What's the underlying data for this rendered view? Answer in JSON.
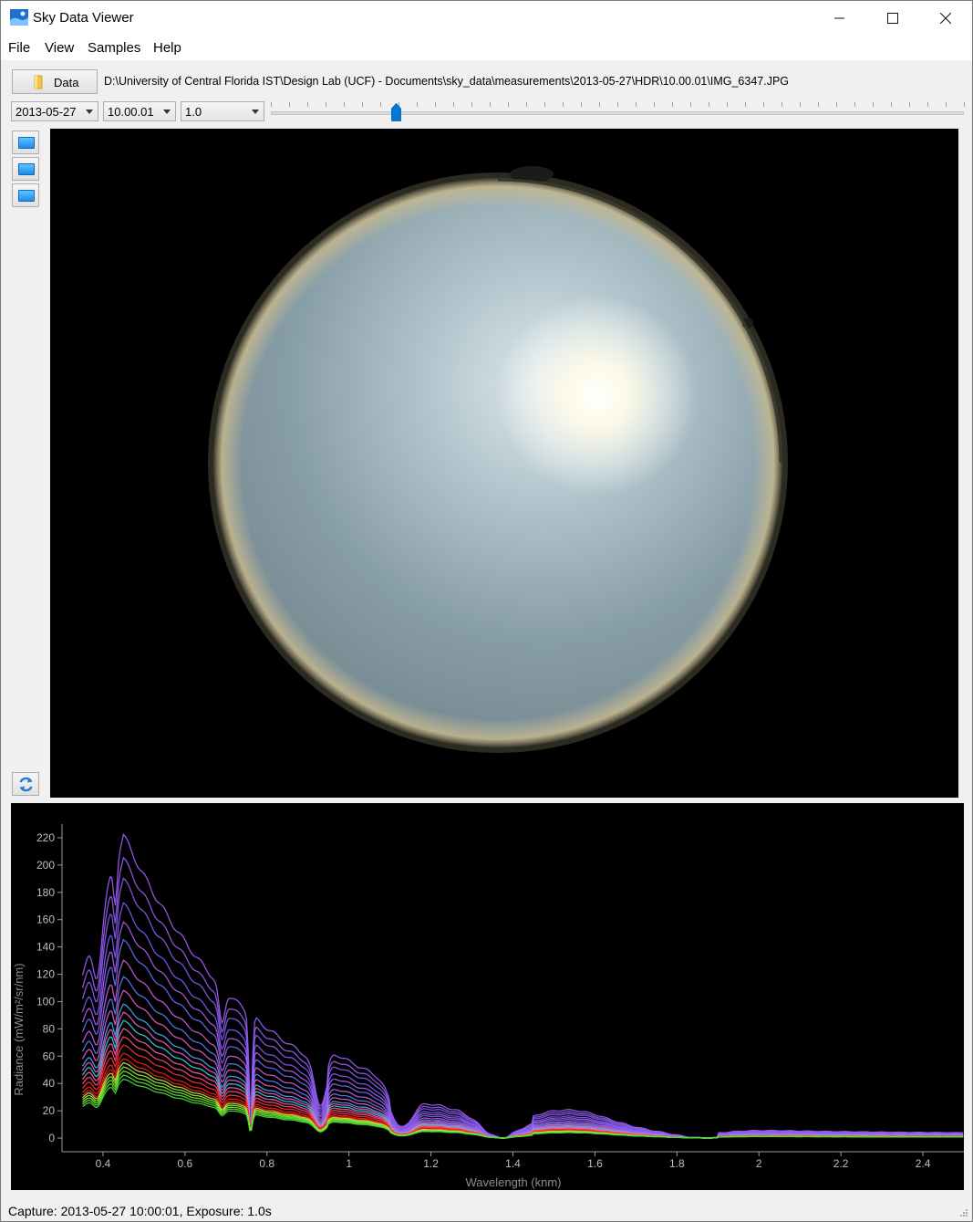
{
  "window": {
    "title": "Sky Data Viewer",
    "controls": {
      "minimize": "minimize-icon",
      "maximize": "maximize-icon",
      "close": "close-icon"
    }
  },
  "menu": {
    "items": [
      "File",
      "View",
      "Samples",
      "Help"
    ]
  },
  "toolbar": {
    "data_button_label": "Data",
    "path": "D:\\University of Central Florida IST\\Design Lab (UCF) - Documents\\sky_data\\measurements\\2013-05-27\\HDR\\10.00.01\\IMG_6347.JPG",
    "date_combo": "2013-05-27",
    "time_combo": "10.00.01",
    "exposure_combo": "1.0",
    "slider_position": 0.18
  },
  "sidebar": {
    "buttons": [
      "monitor-icon",
      "monitor-icon",
      "monitor-icon"
    ],
    "refresh": "refresh-icon"
  },
  "status": {
    "text": "Capture: 2013-05-27 10:00:01, Exposure: 1.0s"
  },
  "colors": {
    "accent": "#0078d7",
    "plot_bg": "#000000",
    "tick_text": "#bfbfbf"
  },
  "chart_data": {
    "type": "line",
    "title": "",
    "xlabel": "Wavelength (knm)",
    "ylabel": "Radiance (mW/m²/sr/nm)",
    "xlim": [
      0.3,
      2.5
    ],
    "ylim": [
      -10,
      230
    ],
    "x_ticks": [
      "0.4",
      "0.6",
      "0.8",
      "1",
      "1.2",
      "1.4",
      "1.6",
      "1.8",
      "2",
      "2.2",
      "2.4"
    ],
    "y_ticks": [
      "0",
      "20",
      "40",
      "60",
      "80",
      "100",
      "120",
      "140",
      "160",
      "180",
      "200",
      "220"
    ],
    "series": [
      {
        "color": "#a25cff",
        "peak": 222
      },
      {
        "color": "#9a5cf0",
        "peak": 205
      },
      {
        "color": "#8b5cf6",
        "peak": 190
      },
      {
        "color": "#7b5cff",
        "peak": 172
      },
      {
        "color": "#b15cf0",
        "peak": 158
      },
      {
        "color": "#6a6cff",
        "peak": 145
      },
      {
        "color": "#d05ce0",
        "peak": 130
      },
      {
        "color": "#5a7cff",
        "peak": 118
      },
      {
        "color": "#e45cd0",
        "peak": 108
      },
      {
        "color": "#4aa8ff",
        "peak": 98
      },
      {
        "color": "#f05cc0",
        "peak": 92
      },
      {
        "color": "#36d4e8",
        "peak": 86
      },
      {
        "color": "#ff5ca8",
        "peak": 80
      },
      {
        "color": "#ff4a80",
        "peak": 74
      },
      {
        "color": "#ff3030",
        "peak": 68
      },
      {
        "color": "#ff1a1a",
        "peak": 62
      },
      {
        "color": "#e82020",
        "peak": 58
      },
      {
        "color": "#c8e640",
        "peak": 55
      },
      {
        "color": "#9cf040",
        "peak": 52
      },
      {
        "color": "#7cf020",
        "peak": 49
      },
      {
        "color": "#5ce830",
        "peak": 46
      },
      {
        "color": "#44e040",
        "peak": 43
      }
    ]
  }
}
